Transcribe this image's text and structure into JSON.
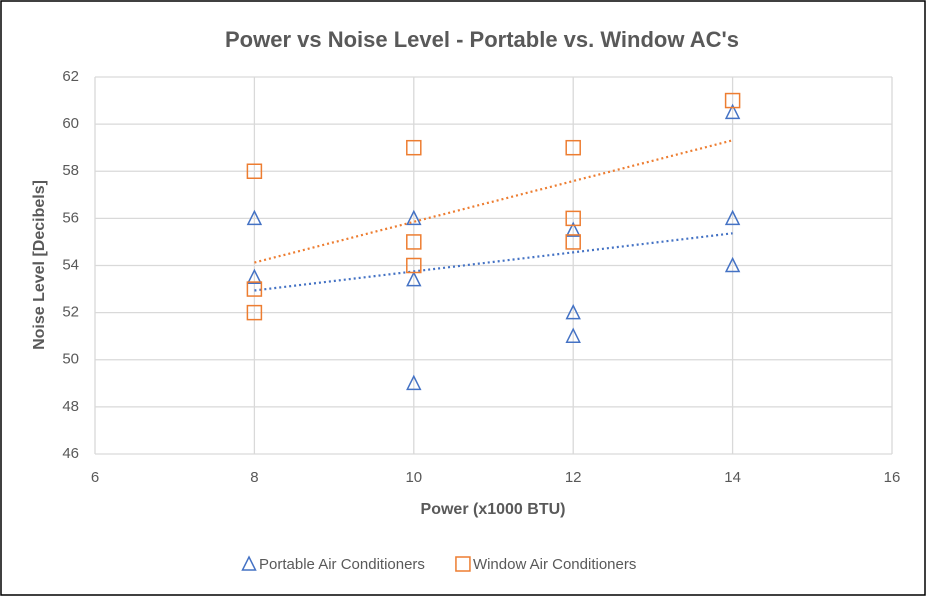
{
  "chart_data": {
    "type": "scatter",
    "title": "Power vs Noise Level - Portable vs. Window AC's",
    "x_label": "Power (x1000 BTU)",
    "y_label": "Noise Level [Decibels]",
    "xlim": [
      6,
      16
    ],
    "xticks": [
      6,
      8,
      10,
      12,
      14,
      16
    ],
    "ylim": [
      46,
      62
    ],
    "yticks": [
      46,
      48,
      50,
      52,
      54,
      56,
      58,
      60,
      62
    ],
    "grid": true,
    "legend": "bottom",
    "series": [
      {
        "name": "Portable Air Conditioners",
        "color": "#4472c4",
        "marker": "triangle",
        "trendline": true,
        "x": [
          8,
          8,
          10,
          10,
          10,
          12,
          12,
          12,
          14,
          14,
          14
        ],
        "values": [
          56,
          53.5,
          56,
          53.4,
          49,
          55.5,
          52,
          51,
          60.5,
          56,
          54
        ]
      },
      {
        "name": "Window Air Conditioners",
        "color": "#ed7d31",
        "marker": "square",
        "trendline": true,
        "x": [
          8,
          8,
          8,
          10,
          10,
          10,
          12,
          12,
          12,
          14
        ],
        "values": [
          58,
          53,
          52,
          59,
          55,
          54,
          59,
          56,
          55,
          61
        ]
      }
    ]
  }
}
